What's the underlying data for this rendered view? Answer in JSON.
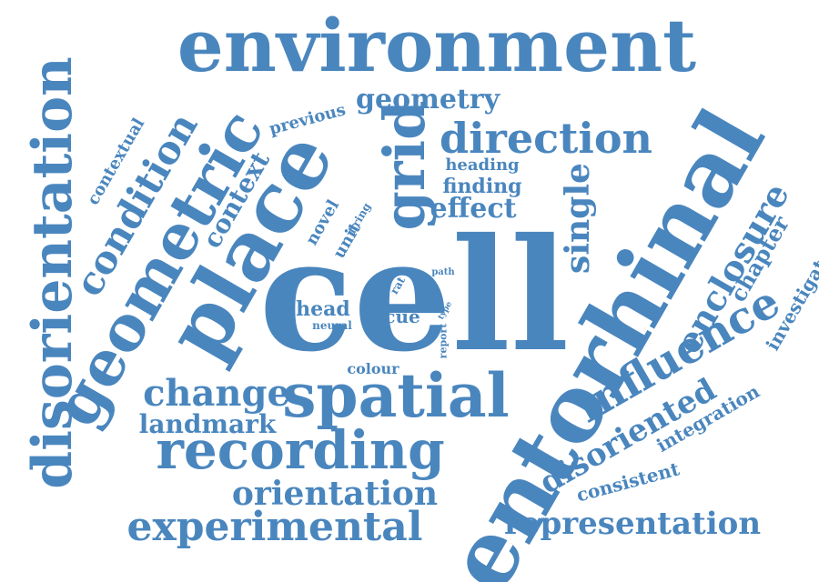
{
  "theme": {
    "word_color": "#4a86be",
    "background": "#ffffff"
  },
  "words": {
    "environment": "environment",
    "cell": "cell",
    "entorhinal": "entorhinal",
    "place": "place",
    "spatial": "spatial",
    "geometric": "geometric",
    "disorientation": "disorientation",
    "recording": "recording",
    "grid": "grid",
    "direction": "direction",
    "influence": "influence",
    "experimental": "experimental",
    "condition": "condition",
    "orientation": "orientation",
    "change": "change",
    "enclosure": "enclosure",
    "disoriented": "disoriented",
    "representation": "representation",
    "geometry": "geometry",
    "single": "single",
    "effect": "effect",
    "landmark": "landmark",
    "context": "context",
    "chapter": "chapter",
    "investigate": "investigate",
    "head": "head",
    "cue": "cue",
    "heading": "heading",
    "finding": "finding",
    "previous": "previous",
    "contextual": "contextual",
    "novel": "novel",
    "unit": "unit",
    "firing": "firing",
    "integration": "integration",
    "consistent": "consistent",
    "colour": "colour",
    "neural": "neural",
    "rat": "rat",
    "path": "path",
    "type": "type",
    "report": "report"
  }
}
